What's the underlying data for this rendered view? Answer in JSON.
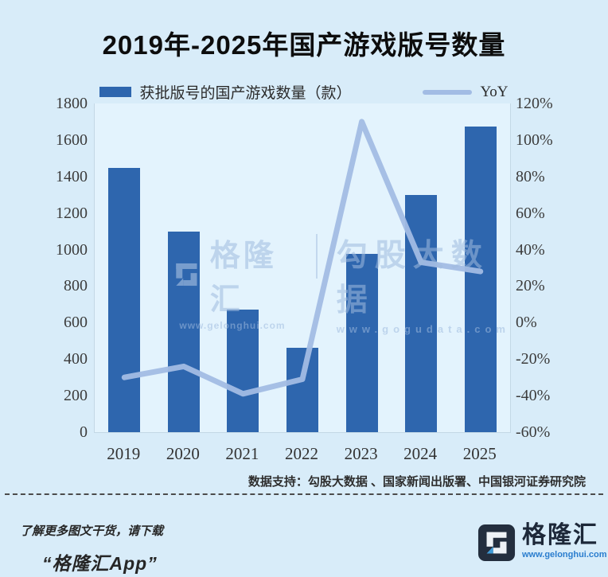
{
  "title": "2019年-2025年国产游戏版号数量",
  "legend": {
    "bars": "获批版号的国产游戏数量（款）",
    "line": "YoY"
  },
  "chart_data": {
    "type": "bar",
    "subtype": "combo bar+line, dual axis",
    "title": "2019年-2025年国产游戏版号数量",
    "categories": [
      "2019",
      "2020",
      "2021",
      "2022",
      "2023",
      "2024",
      "2025"
    ],
    "series": [
      {
        "name": "获批版号的国产游戏数量（款）",
        "type": "bar",
        "axis": "left",
        "values": [
          1445,
          1100,
          670,
          460,
          975,
          1300,
          1675
        ]
      },
      {
        "name": "YoY",
        "type": "line",
        "axis": "right",
        "unit": "%",
        "values": [
          -30,
          -24,
          -39,
          -31,
          110,
          33,
          28
        ]
      }
    ],
    "left_axis": {
      "min": 0,
      "max": 1800,
      "step": 200,
      "ticks": [
        "1800",
        "1600",
        "1400",
        "1200",
        "1000",
        "800",
        "600",
        "400",
        "200",
        "0"
      ]
    },
    "right_axis": {
      "min": -60,
      "max": 120,
      "step": 20,
      "ticks": [
        "120%",
        "100%",
        "80%",
        "60%",
        "40%",
        "20%",
        "0%",
        "-20%",
        "-40%",
        "-60%"
      ]
    },
    "legend_position": "top",
    "grid": false
  },
  "watermarks": {
    "left": {
      "name": "格隆汇",
      "url": "www.gelonghui.com"
    },
    "right": {
      "name": "勾股大数据",
      "url": "www.gogudata.com"
    }
  },
  "source": "数据支持：勾股大数据 、国家新闻出版署、中国银河证券研究院",
  "footer": {
    "cta_line1": "了解更多图文干货，请下载",
    "cta_line2": "“格隆汇App”",
    "brand_name": "格隆汇",
    "brand_url": "www.gelonghui.com"
  },
  "colors": {
    "background": "#d8ecf9",
    "bar": "#2e66ae",
    "line": "#a2bce4",
    "axis_text": "#3c3c3c",
    "watermark": "#b6cbe8",
    "brand_navy": "#232e3e",
    "brand_blue": "#3f9ad6",
    "url_blue": "#2a7dce"
  }
}
